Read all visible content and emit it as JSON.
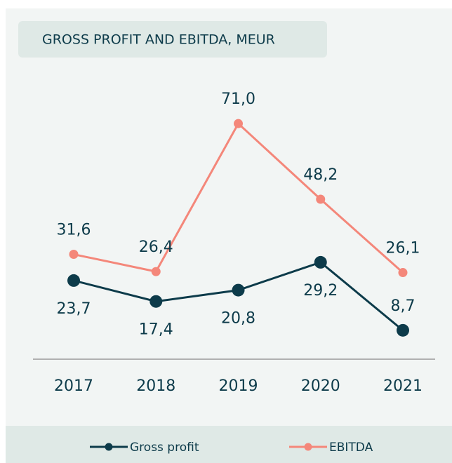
{
  "chart_data": {
    "type": "line",
    "title": "GROSS PROFIT AND EBITDA, MEUR",
    "categories": [
      "2017",
      "2018",
      "2019",
      "2020",
      "2021"
    ],
    "ylim": [
      0,
      80
    ],
    "series": [
      {
        "name": "Gross profit",
        "color": "#0d3b4a",
        "values": [
          23.7,
          17.4,
          20.8,
          29.2,
          8.7
        ],
        "value_labels": [
          "23,7",
          "17,4",
          "20,8",
          "29,2",
          "8,7"
        ]
      },
      {
        "name": "EBITDA",
        "color": "#f4877a",
        "values": [
          31.6,
          26.4,
          71.0,
          48.2,
          26.1
        ],
        "value_labels": [
          "31,6",
          "26,4",
          "71,0",
          "48,2",
          "26,1"
        ]
      }
    ]
  }
}
